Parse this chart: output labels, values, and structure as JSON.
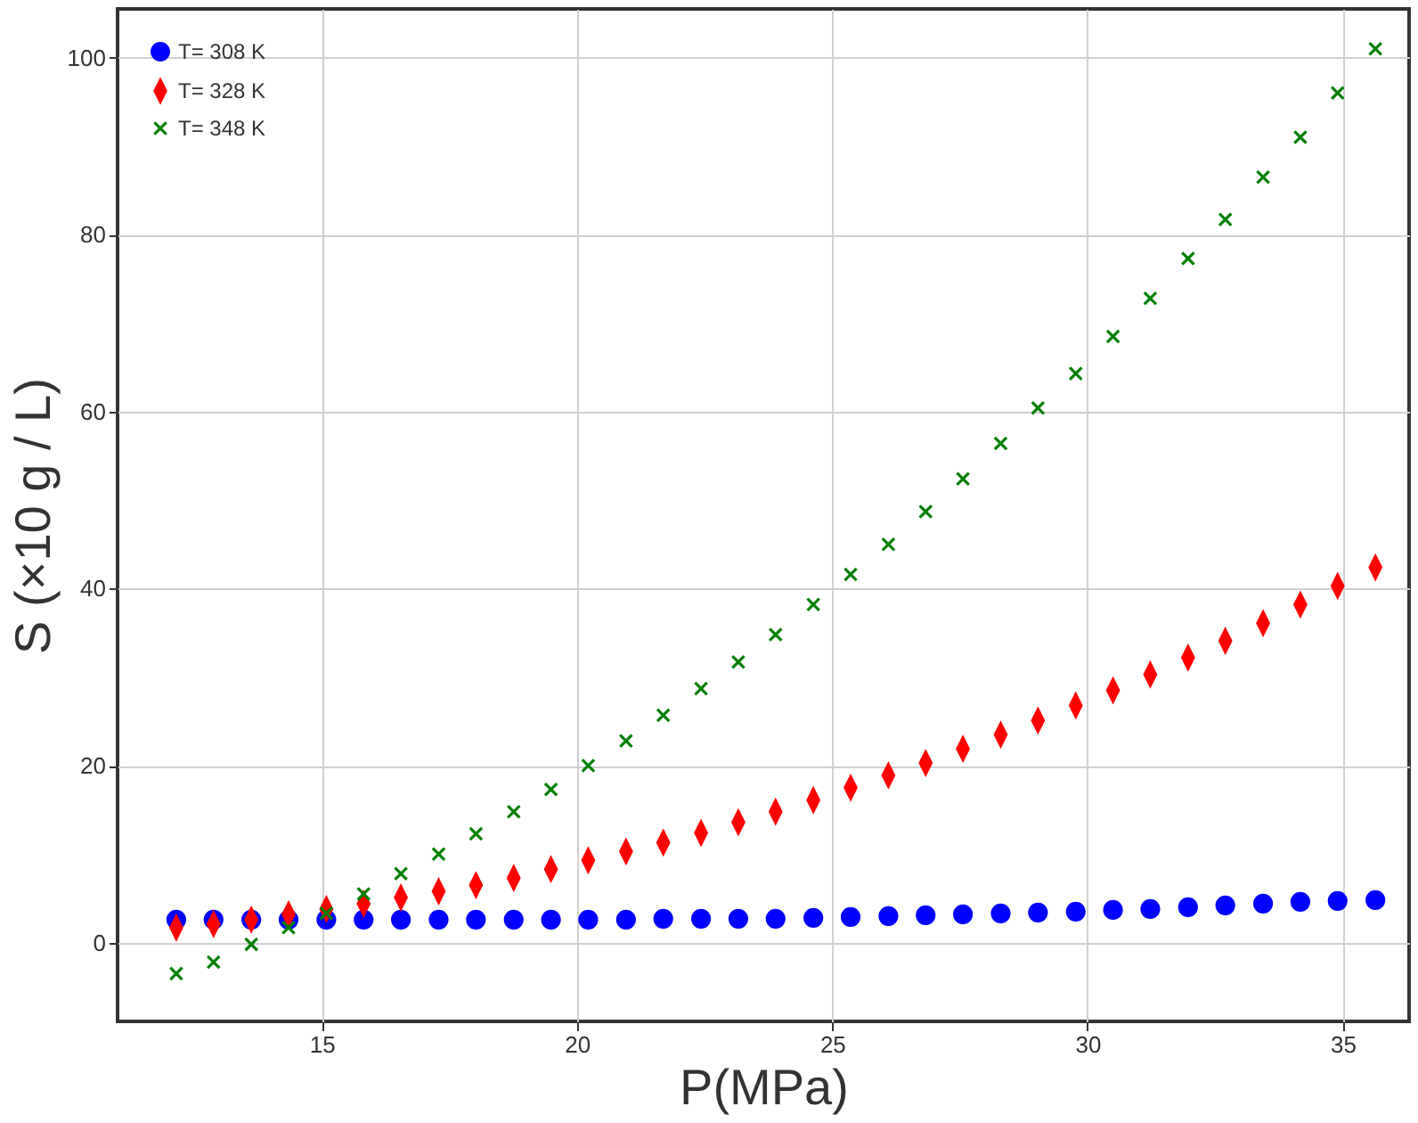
{
  "chart_data": {
    "type": "scatter",
    "xlabel": "P(MPa)",
    "ylabel": "S (×10 g / L)",
    "x": [
      12.15,
      12.88,
      13.62,
      14.35,
      15.09,
      15.82,
      16.55,
      17.29,
      18.02,
      18.76,
      19.49,
      20.22,
      20.96,
      21.69,
      22.43,
      23.16,
      23.89,
      24.63,
      25.36,
      26.1,
      26.83,
      27.56,
      28.3,
      29.03,
      29.77,
      30.5,
      31.23,
      31.97,
      32.7,
      33.44,
      34.17,
      34.9,
      35.64
    ],
    "series": [
      {
        "name": "T= 308 K",
        "color": "#0000ff",
        "marker": "circle",
        "values": [
          2.6,
          2.6,
          2.6,
          2.6,
          2.6,
          2.6,
          2.6,
          2.6,
          2.6,
          2.6,
          2.6,
          2.6,
          2.6,
          2.7,
          2.7,
          2.7,
          2.7,
          2.8,
          2.9,
          3.0,
          3.1,
          3.2,
          3.3,
          3.4,
          3.5,
          3.7,
          3.8,
          4.0,
          4.2,
          4.4,
          4.6,
          4.7,
          4.8
        ]
      },
      {
        "name": "T= 328 K",
        "color": "#ff0000",
        "marker": "diamond",
        "values": [
          1.7,
          2.1,
          2.6,
          3.2,
          3.8,
          4.4,
          5.1,
          5.8,
          6.5,
          7.3,
          8.3,
          9.3,
          10.3,
          11.3,
          12.4,
          13.6,
          14.8,
          16.1,
          17.5,
          18.9,
          20.3,
          21.9,
          23.5,
          25.1,
          26.8,
          28.5,
          30.3,
          32.2,
          34.1,
          36.1,
          38.2,
          40.3,
          42.4
        ]
      },
      {
        "name": "T= 348 K",
        "color": "#008000",
        "marker": "cross",
        "values": [
          -3.5,
          -2.2,
          -0.2,
          1.7,
          3.3,
          5.5,
          7.8,
          10,
          12.3,
          14.8,
          17.3,
          20,
          22.8,
          25.7,
          28.7,
          31.7,
          34.8,
          38.2,
          41.6,
          45,
          48.7,
          52.4,
          56.4,
          60.4,
          64.3,
          68.5,
          72.8,
          77.3,
          81.7,
          86.5,
          91,
          96,
          101
        ]
      }
    ],
    "xlim": [
      11,
      36.3
    ],
    "ylim": [
      -8.9,
      105.5
    ],
    "xticks": [
      15,
      20,
      25,
      30,
      35
    ],
    "yticks": [
      0,
      20,
      40,
      60,
      80,
      100
    ],
    "grid": true,
    "legend": "top left"
  }
}
